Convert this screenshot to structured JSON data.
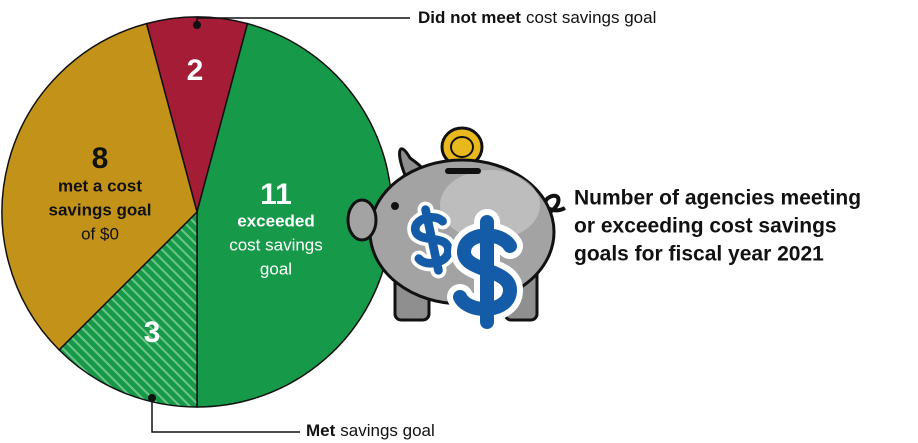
{
  "chart_data": {
    "type": "pie",
    "title": [
      "Number of agencies meeting",
      "or exceeding cost savings",
      "goals for fiscal year 2021"
    ],
    "series": [
      {
        "values": [
          2,
          11,
          3,
          8
        ],
        "colors": [
          "#a51c36",
          "#17994a",
          "#17994a",
          "#c29318"
        ],
        "hatched": [
          false,
          false,
          true,
          false
        ]
      }
    ],
    "slice_notes": [
      null,
      [
        {
          "text": "exceeded",
          "bold": true
        },
        {
          "text": "cost savings",
          "bold": false
        },
        {
          "text": "goal",
          "bold": false
        }
      ],
      null,
      [
        {
          "text": "met a cost",
          "bold": true
        },
        {
          "text": "savings goal",
          "bold": true
        },
        {
          "text": "of $0",
          "bold": false
        }
      ]
    ],
    "callouts": [
      {
        "strong": "Did not meet",
        "rest": "cost savings goal"
      },
      {
        "strong": "Met",
        "rest": "savings goal"
      }
    ]
  }
}
